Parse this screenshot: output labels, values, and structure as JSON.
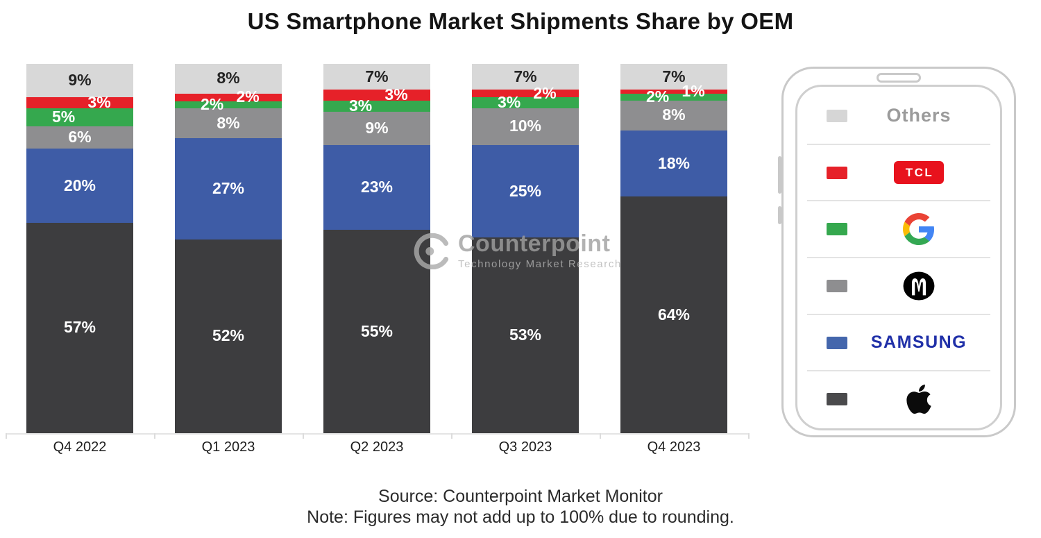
{
  "title": "US Smartphone Market Shipments Share by OEM",
  "chart_data": {
    "type": "bar",
    "stacked": true,
    "unit": "%",
    "ylim": [
      0,
      100
    ],
    "grid": false,
    "categories": [
      "Q4 2022",
      "Q1 2023",
      "Q2 2023",
      "Q3 2023",
      "Q4 2023"
    ],
    "series": [
      {
        "name": "Apple",
        "color": "#3d3d3f",
        "label_style": "center",
        "label_color": "white",
        "values": [
          57,
          52,
          55,
          53,
          64
        ]
      },
      {
        "name": "Samsung",
        "color": "#3e5ca6",
        "label_style": "center",
        "label_color": "white",
        "values": [
          20,
          27,
          23,
          25,
          18
        ]
      },
      {
        "name": "Motorola",
        "color": "#8e8e90",
        "label_style": "center",
        "label_color": "white",
        "values": [
          6,
          8,
          9,
          10,
          8
        ]
      },
      {
        "name": "Google",
        "color": "#35a84e",
        "label_style": "left",
        "label_color": "white",
        "values": [
          5,
          2,
          3,
          3,
          2
        ]
      },
      {
        "name": "TCL",
        "color": "#e62129",
        "label_style": "right",
        "label_color": "white",
        "values": [
          3,
          2,
          3,
          2,
          1
        ]
      },
      {
        "name": "Others",
        "color": "#d8d8d8",
        "label_style": "center",
        "label_color": "dark",
        "values": [
          9,
          8,
          7,
          7,
          7
        ]
      }
    ],
    "legend_position": "right"
  },
  "legend": {
    "items": [
      {
        "id": "others",
        "label": "Others",
        "swatch": "#d6d6d6",
        "logo": "others-text"
      },
      {
        "id": "tcl",
        "label": "TCL",
        "swatch": "#e62129",
        "logo": "tcl-badge"
      },
      {
        "id": "google",
        "label": "Google",
        "swatch": "#35a84e",
        "logo": "google-g"
      },
      {
        "id": "motorola",
        "label": "Motorola",
        "swatch": "#8e8e90",
        "logo": "motorola-m"
      },
      {
        "id": "samsung",
        "label": "SAMSUNG",
        "swatch": "#4466ac",
        "logo": "samsung-wordmark"
      },
      {
        "id": "apple",
        "label": "Apple",
        "swatch": "#4a4a4c",
        "logo": "apple-mark"
      }
    ]
  },
  "watermark": {
    "name": "Counterpoint",
    "tagline": "Technology Market Research"
  },
  "source": {
    "line1": "Source: Counterpoint Market Monitor",
    "line2": "Note: Figures may not add up to 100% due to rounding."
  }
}
